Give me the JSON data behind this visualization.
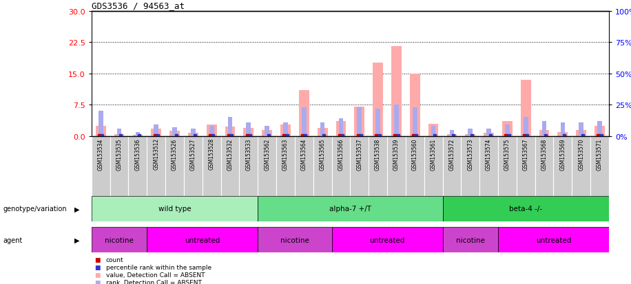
{
  "title": "GDS3536 / 94563_at",
  "samples": [
    "GSM153534",
    "GSM153535",
    "GSM153536",
    "GSM153512",
    "GSM153526",
    "GSM153527",
    "GSM153528",
    "GSM153532",
    "GSM153533",
    "GSM153562",
    "GSM153563",
    "GSM153564",
    "GSM153565",
    "GSM153566",
    "GSM153537",
    "GSM153538",
    "GSM153539",
    "GSM153560",
    "GSM153561",
    "GSM153572",
    "GSM153573",
    "GSM153574",
    "GSM153575",
    "GSM153567",
    "GSM153568",
    "GSM153569",
    "GSM153570",
    "GSM153571"
  ],
  "pink_values": [
    2.5,
    0.5,
    0.3,
    1.8,
    1.2,
    0.8,
    2.8,
    2.2,
    2.0,
    1.5,
    2.8,
    11.0,
    2.0,
    3.5,
    7.0,
    17.5,
    21.5,
    15.0,
    3.0,
    0.5,
    0.5,
    0.8,
    3.5,
    13.5,
    1.5,
    1.0,
    1.5,
    2.5
  ],
  "blue_values_pct": [
    20,
    6,
    3,
    9,
    7,
    6,
    8,
    15,
    11,
    8,
    11,
    23,
    11,
    14,
    23,
    22,
    25,
    23,
    8,
    5,
    6,
    6,
    9,
    15,
    12,
    11,
    11,
    12
  ],
  "count_marks": [
    1,
    0,
    0,
    1,
    0,
    0,
    1,
    1,
    1,
    0,
    1,
    1,
    0,
    1,
    1,
    1,
    1,
    1,
    0,
    0,
    0,
    0,
    1,
    1,
    0,
    0,
    0,
    1
  ],
  "percentile_marks": [
    1,
    1,
    1,
    1,
    1,
    1,
    1,
    1,
    1,
    1,
    1,
    1,
    1,
    1,
    1,
    1,
    1,
    1,
    1,
    1,
    1,
    1,
    1,
    1,
    1,
    1,
    1,
    1
  ],
  "genotype_groups": [
    {
      "label": "wild type",
      "start": 0,
      "end": 9,
      "color": "#aaeebb"
    },
    {
      "label": "alpha-7 +/T",
      "start": 9,
      "end": 19,
      "color": "#66dd88"
    },
    {
      "label": "beta-4 -/-",
      "start": 19,
      "end": 28,
      "color": "#33cc55"
    }
  ],
  "agent_groups": [
    {
      "label": "nicotine",
      "start": 0,
      "end": 3,
      "color": "#cc44cc"
    },
    {
      "label": "untreated",
      "start": 3,
      "end": 9,
      "color": "#ff00ff"
    },
    {
      "label": "nicotine",
      "start": 9,
      "end": 13,
      "color": "#cc44cc"
    },
    {
      "label": "untreated",
      "start": 13,
      "end": 19,
      "color": "#ff00ff"
    },
    {
      "label": "nicotine",
      "start": 19,
      "end": 22,
      "color": "#cc44cc"
    },
    {
      "label": "untreated",
      "start": 22,
      "end": 28,
      "color": "#ff00ff"
    }
  ],
  "ylim_left": [
    0,
    30
  ],
  "ylim_right": [
    0,
    100
  ],
  "yticks_left": [
    0,
    7.5,
    15,
    22.5,
    30
  ],
  "yticks_right": [
    0,
    25,
    50,
    75,
    100
  ],
  "pink_color": "#ffaaaa",
  "blue_color": "#aaaaee",
  "red_mark_color": "#cc0000",
  "blue_mark_color": "#3333cc",
  "bg_color": "#cccccc",
  "legend_items": [
    {
      "label": "count",
      "color": "#cc0000",
      "marker": true
    },
    {
      "label": "percentile rank within the sample",
      "color": "#3333cc",
      "marker": true
    },
    {
      "label": "value, Detection Call = ABSENT",
      "color": "#ffaaaa",
      "marker": false
    },
    {
      "label": "rank, Detection Call = ABSENT",
      "color": "#aaaaee",
      "marker": false
    }
  ]
}
